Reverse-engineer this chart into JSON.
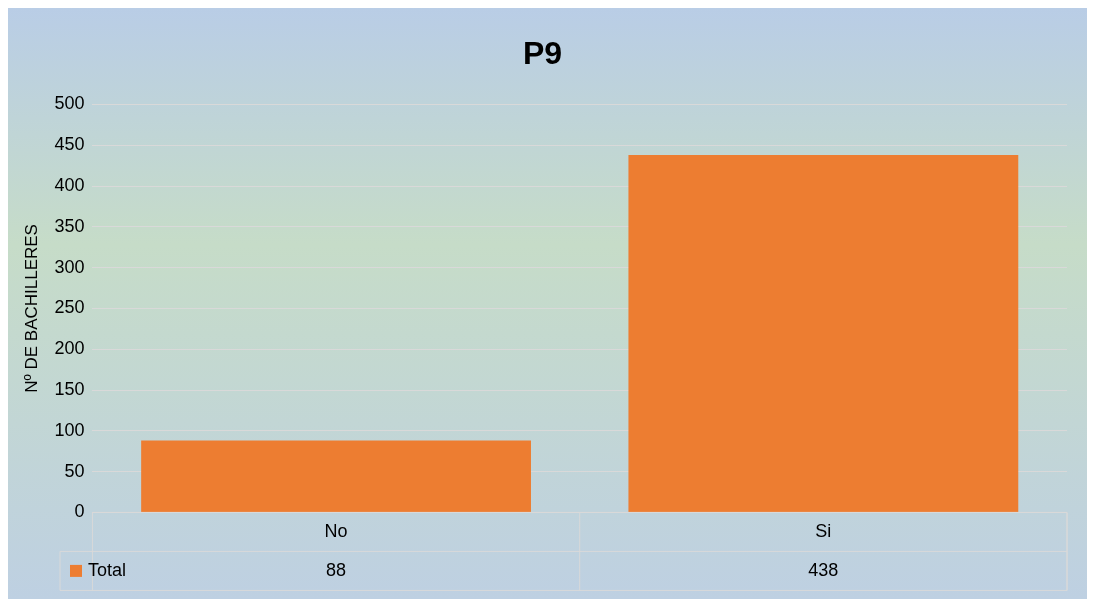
{
  "chart_data": {
    "type": "bar",
    "title": "P9",
    "ylabel": "Nº DE BACHILLERES",
    "categories": [
      "No",
      "Si"
    ],
    "series": [
      {
        "name": "Total",
        "color": "#ed7d31",
        "values": [
          88,
          438
        ]
      }
    ],
    "ylim": [
      0,
      500
    ],
    "yticks": [
      0,
      50,
      100,
      150,
      200,
      250,
      300,
      350,
      400,
      450,
      500
    ],
    "grid": "y",
    "legend": "bottom left",
    "data_labels": true
  }
}
